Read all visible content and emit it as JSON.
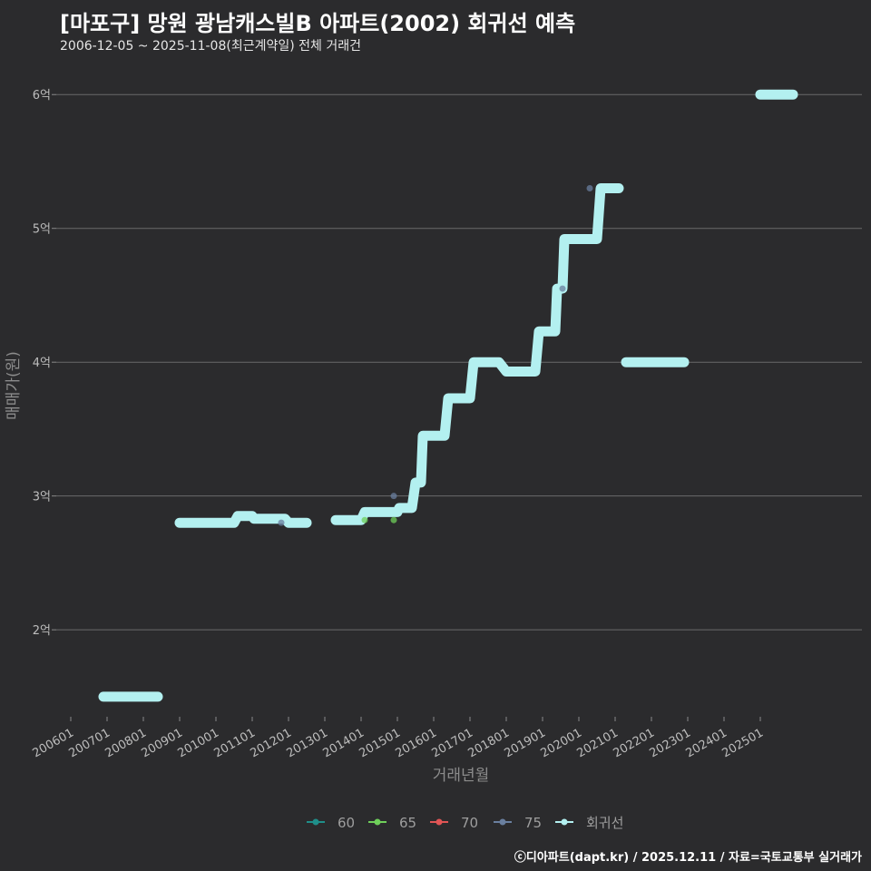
{
  "title": "[마포구] 망원 광남캐스빌B 아파트(2002) 회귀선 예측",
  "subtitle": "2006-12-05 ~ 2025-11-08(최근계약일) 전체 거래건",
  "credit": "ⓒ디아파트(dapt.kr) / 2025.12.11 / 자료=국토교통부 실거래가",
  "chart_data": {
    "type": "line",
    "xlabel": "거래년월",
    "ylabel": "매매가(원)",
    "x_ticks": [
      "200601",
      "200701",
      "200801",
      "200901",
      "201001",
      "201101",
      "201201",
      "201301",
      "201401",
      "201501",
      "201601",
      "201701",
      "201801",
      "201901",
      "202001",
      "202101",
      "202201",
      "202301",
      "202401",
      "202501"
    ],
    "y_ticks": [
      {
        "value": 2.0,
        "label": "2억"
      },
      {
        "value": 3.0,
        "label": "3억"
      },
      {
        "value": 4.0,
        "label": "4억"
      },
      {
        "value": 5.0,
        "label": "5억"
      },
      {
        "value": 6.0,
        "label": "6억"
      }
    ],
    "xlim": [
      2005.6,
      2027.8
    ],
    "ylim": [
      1.35,
      6.3
    ],
    "y_unit": "억",
    "legend": [
      {
        "name": "60",
        "color": "#1f8f8a"
      },
      {
        "name": "65",
        "color": "#6fcf5a"
      },
      {
        "name": "70",
        "color": "#e05555"
      },
      {
        "name": "75",
        "color": "#6a7f9f"
      },
      {
        "name": "회귀선",
        "color": "#b3f0f0"
      }
    ],
    "regression_color": "#b3f0f0",
    "regression_segments": [
      [
        [
          2006.9,
          1.5
        ],
        [
          2008.4,
          1.5
        ]
      ],
      [
        [
          2009.0,
          2.8
        ],
        [
          2010.5,
          2.8
        ],
        [
          2010.6,
          2.85
        ],
        [
          2011.0,
          2.85
        ],
        [
          2011.05,
          2.83
        ],
        [
          2011.9,
          2.83
        ],
        [
          2012.0,
          2.8
        ],
        [
          2012.5,
          2.8
        ]
      ],
      [
        [
          2013.3,
          2.82
        ],
        [
          2014.0,
          2.82
        ],
        [
          2014.1,
          2.88
        ],
        [
          2015.0,
          2.88
        ],
        [
          2015.05,
          2.91
        ],
        [
          2015.4,
          2.91
        ],
        [
          2015.5,
          3.1
        ],
        [
          2015.65,
          3.1
        ],
        [
          2015.7,
          3.45
        ],
        [
          2016.3,
          3.45
        ],
        [
          2016.4,
          3.73
        ],
        [
          2017.0,
          3.73
        ],
        [
          2017.1,
          4.0
        ],
        [
          2017.8,
          4.0
        ],
        [
          2018.0,
          3.93
        ],
        [
          2018.8,
          3.93
        ],
        [
          2018.9,
          4.23
        ],
        [
          2019.35,
          4.23
        ],
        [
          2019.4,
          4.55
        ],
        [
          2019.55,
          4.55
        ],
        [
          2019.6,
          4.92
        ],
        [
          2020.5,
          4.92
        ],
        [
          2020.6,
          5.3
        ],
        [
          2021.1,
          5.3
        ]
      ],
      [
        [
          2021.3,
          4.0
        ],
        [
          2022.9,
          4.0
        ]
      ],
      [
        [
          2025.0,
          6.0
        ],
        [
          2025.9,
          6.0
        ]
      ]
    ],
    "points": [
      {
        "x": 2011.8,
        "y": 2.8,
        "series": "75"
      },
      {
        "x": 2014.1,
        "y": 2.82,
        "series": "65"
      },
      {
        "x": 2014.9,
        "y": 2.82,
        "series": "65"
      },
      {
        "x": 2014.9,
        "y": 3.0,
        "series": "75"
      },
      {
        "x": 2019.55,
        "y": 4.55,
        "series": "75"
      },
      {
        "x": 2020.3,
        "y": 5.3,
        "series": "75"
      }
    ]
  }
}
